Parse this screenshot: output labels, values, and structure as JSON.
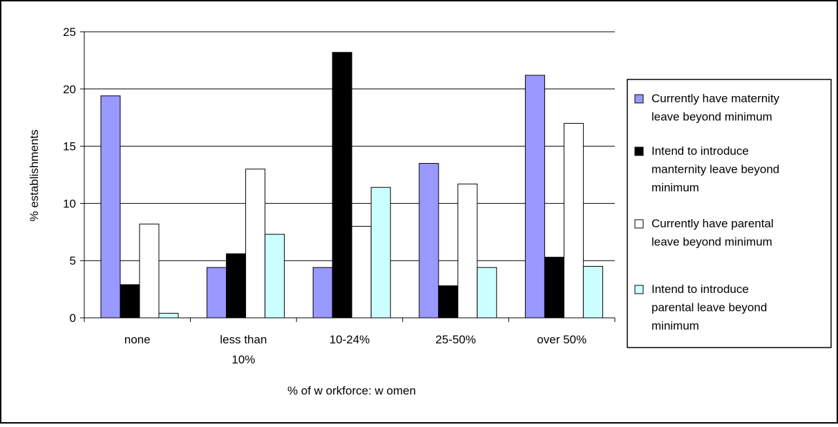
{
  "chart_data": {
    "type": "bar",
    "title": "",
    "xlabel": "% of w orkforce:  w omen",
    "ylabel": "% establishments",
    "ylim": [
      0,
      25
    ],
    "yticks": [
      0,
      5,
      10,
      15,
      20,
      25
    ],
    "grid": true,
    "legend_position": "right",
    "categories": [
      [
        "none"
      ],
      [
        "less than",
        "10%"
      ],
      [
        "10-24%"
      ],
      [
        "25-50%"
      ],
      [
        "over 50%"
      ]
    ],
    "series": [
      {
        "name": "Currently have maternity leave beyond minimum",
        "legend_lines": [
          "Currently have maternity",
          "leave beyond minimum"
        ],
        "color": "#9999ff",
        "values": [
          19.4,
          4.4,
          4.4,
          13.5,
          21.2
        ]
      },
      {
        "name": "Intend to introduce manternity leave beyond minimum",
        "legend_lines": [
          "Intend to introduce",
          "manternity leave beyond",
          "minimum"
        ],
        "color": "#000000",
        "values": [
          2.9,
          5.6,
          23.2,
          2.8,
          5.3
        ]
      },
      {
        "name": "Currently have parental leave beyond minimum",
        "legend_lines": [
          "Currently have parental",
          "leave beyond minimum"
        ],
        "color": "#ffffff",
        "values": [
          8.2,
          13.0,
          8.0,
          11.7,
          17.0
        ]
      },
      {
        "name": "Intend to introduce parental leave beyond minimum",
        "legend_lines": [
          "Intend to introduce",
          "parental leave beyond",
          "minimum"
        ],
        "color": "#ccffff",
        "values": [
          0.4,
          7.3,
          11.4,
          4.4,
          4.5
        ]
      }
    ]
  }
}
